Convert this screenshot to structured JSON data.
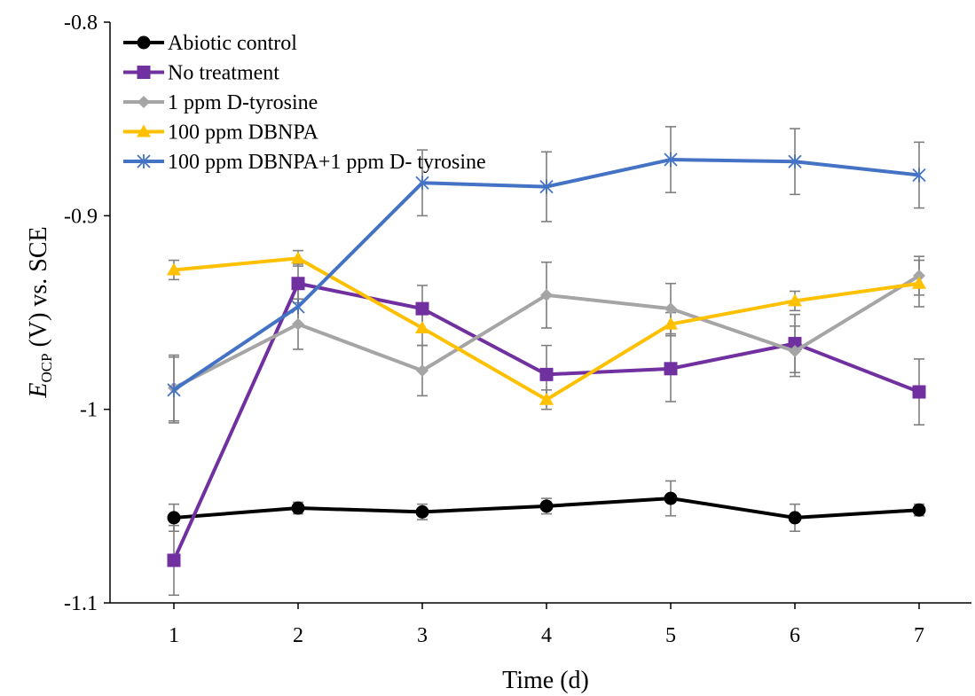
{
  "chart_data": {
    "type": "line",
    "title": "",
    "xlabel": "Time (d)",
    "ylabel": {
      "symbol": "E",
      "subscript": "OCP",
      "rest": " (V) vs. SCE"
    },
    "x": [
      1,
      2,
      3,
      4,
      5,
      6,
      7
    ],
    "x_tick_labels": [
      "1",
      "2",
      "3",
      "4",
      "5",
      "6",
      "7"
    ],
    "ylim": [
      -1.1,
      -0.8
    ],
    "y_ticks": [
      -0.8,
      -0.9,
      -1.0,
      -1.1
    ],
    "y_tick_labels": [
      "-0.8",
      "-0.9",
      "-1",
      "-1.1"
    ],
    "grid": false,
    "legend_position": "top-left",
    "series": [
      {
        "name": "Abiotic control",
        "color": "#000000",
        "marker": "circle",
        "values": [
          -1.056,
          -1.051,
          -1.053,
          -1.05,
          -1.046,
          -1.056,
          -1.052
        ],
        "errors": [
          0.007,
          0.003,
          0.004,
          0.004,
          0.009,
          0.007,
          0.003
        ]
      },
      {
        "name": "No treatment",
        "color": "#7030a0",
        "marker": "square",
        "values": [
          -1.078,
          -0.935,
          -0.948,
          -0.982,
          -0.979,
          -0.966,
          -0.991
        ],
        "errors": [
          0.018,
          0.01,
          0.012,
          0.015,
          0.017,
          0.015,
          0.017
        ]
      },
      {
        "name": "1 ppm D-tyrosine",
        "color": "#a5a5a5",
        "marker": "diamond",
        "values": [
          -0.989,
          -0.956,
          -0.98,
          -0.941,
          -0.948,
          -0.97,
          -0.931
        ],
        "errors": [
          0.017,
          0.013,
          0.013,
          0.017,
          0.013,
          0.013,
          0.01
        ]
      },
      {
        "name": "100 ppm DBNPA",
        "color": "#ffc000",
        "marker": "triangle",
        "values": [
          -0.928,
          -0.922,
          -0.958,
          -0.995,
          -0.956,
          -0.944,
          -0.935
        ],
        "errors": [
          0.005,
          0.004,
          0.009,
          0.005,
          0.006,
          0.005,
          0.012
        ]
      },
      {
        "name": "100 ppm DBNPA+1 ppm D- tyrosine",
        "color": "#4472c4",
        "marker": "star",
        "values": [
          -0.99,
          -0.947,
          -0.883,
          -0.885,
          -0.871,
          -0.872,
          -0.879
        ],
        "errors": [
          0.017,
          0.01,
          0.017,
          0.018,
          0.017,
          0.017,
          0.017
        ]
      }
    ]
  }
}
